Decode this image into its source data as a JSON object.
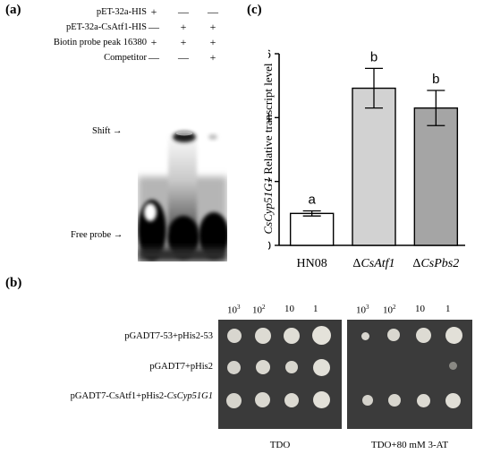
{
  "panels": {
    "a": "(a)",
    "b": "(b)",
    "c": "(c)"
  },
  "emsa": {
    "rows": [
      {
        "label": "pET-32a-HIS",
        "signs": [
          "+",
          "—",
          "—"
        ]
      },
      {
        "label": "pET-32a-CsAtf1-HIS",
        "signs": [
          "—",
          "+",
          "+"
        ]
      },
      {
        "label": "Biotin probe peak 16380",
        "signs": [
          "+",
          "+",
          "+"
        ]
      },
      {
        "label": "Competitor",
        "signs": [
          "—",
          "—",
          "+"
        ]
      }
    ],
    "markers": {
      "shift": "Shift",
      "free_probe": "Free probe"
    }
  },
  "yeast": {
    "dilutions": [
      "10",
      "10",
      "10",
      "1"
    ],
    "dilution_exponents": [
      "3",
      "2",
      "",
      ""
    ],
    "rows": {
      "r1": "pGADT7-53+pHis2-53",
      "r2": "pGADT7+pHis2",
      "r3_prefix": "pGADT7-CsAtf1+pHis2-",
      "r3_italic": "CsCyp51G1"
    },
    "plate_captions": [
      "TDO",
      "TDO+80 mM 3-AT"
    ]
  },
  "chart_data": {
    "type": "bar",
    "categories": [
      "HN08",
      "ΔCsAtf1",
      "ΔCsPbs2"
    ],
    "category_prefixes": [
      "",
      "Δ",
      "Δ"
    ],
    "category_names": [
      "HN08",
      "CsAtf1",
      "CsPbs2"
    ],
    "values": [
      1.0,
      4.92,
      4.3
    ],
    "errors": [
      0.08,
      0.62,
      0.55
    ],
    "significance": [
      "a",
      "b",
      "b"
    ],
    "colors": [
      "#ffffff",
      "#d2d2d2",
      "#a5a5a5"
    ],
    "ylabel_italic": "CsCyp51G1",
    "ylabel_rest": " Relative transcript level",
    "ylim": [
      0,
      6
    ],
    "yticks": [
      "0",
      "2",
      "4",
      "6"
    ]
  }
}
